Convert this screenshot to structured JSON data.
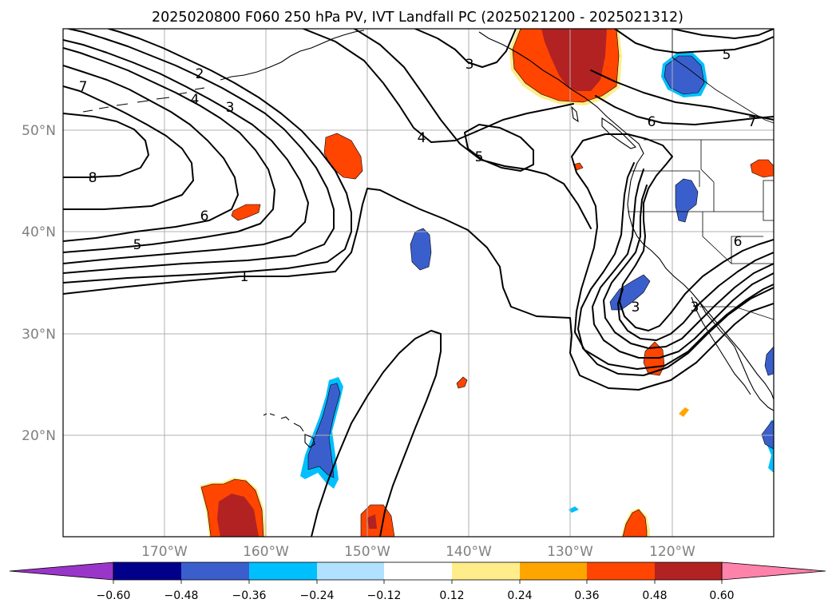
{
  "map": {
    "title": "2025020800 F060 250 hPa PV, IVT Landfall PC (2025021200 - 2025021312)",
    "lat_ticks": [
      "50°N",
      "40°N",
      "30°N",
      "20°N"
    ],
    "lon_ticks": [
      "170°W",
      "160°W",
      "150°W",
      "140°W",
      "130°W",
      "120°W"
    ],
    "contour_labels": [
      "7",
      "8",
      "2",
      "4",
      "3",
      "6",
      "5",
      "1",
      "3",
      "4",
      "5",
      "5",
      "6",
      "7",
      "6",
      "3",
      "3"
    ]
  },
  "colorbar": {
    "tick_labels": [
      "−0.60",
      "−0.48",
      "−0.36",
      "−0.24",
      "−0.12",
      "0.12",
      "0.24",
      "0.36",
      "0.48",
      "0.60"
    ],
    "colors": [
      "#9a35c9",
      "#00008b",
      "#3a5fcd",
      "#00bfff",
      "#b0e2ff",
      "#ffffff",
      "#ffec8b",
      "#ffa500",
      "#ff4500",
      "#b22222",
      "#ff82ab"
    ]
  },
  "colors": {
    "neg_strong": "#3a5fcd",
    "neg_mid": "#00bfff",
    "pos_light": "#ffec8b",
    "pos_mid": "#ffa500",
    "pos_orange_red": "#ff4500",
    "pos_strong": "#b22222",
    "grid": "#b0b0b0",
    "tick_text": "#808080"
  }
}
